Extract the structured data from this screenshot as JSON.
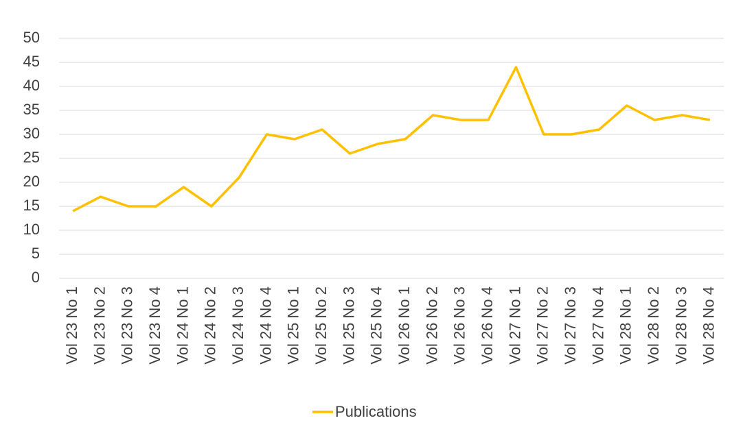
{
  "chart_data": {
    "type": "line",
    "categories": [
      "Vol 23 No 1",
      "Vol 23 No 2",
      "Vol 23 No 3",
      "Vol 23 No 4",
      "Vol 24 No 1",
      "Vol 24 No 2",
      "Vol 24 No 3",
      "Vol 24 No 4",
      "Vol 25 No 1",
      "Vol 25 No 2",
      "Vol 25 No 3",
      "Vol 25 No 4",
      "Vol 26 No 1",
      "Vol 26 No 2",
      "Vol 26 No 3",
      "Vol 26 No 4",
      "Vol 27 No 1",
      "Vol 27 No 2",
      "Vol 27 No 3",
      "Vol 27 No 4",
      "Vol 28 No 1",
      "Vol 28 No 2",
      "Vol 28 No 3",
      "Vol 28 No 4"
    ],
    "series": [
      {
        "name": "Publications",
        "color": "#ffc000",
        "values": [
          14,
          17,
          15,
          15,
          19,
          15,
          21,
          30,
          29,
          31,
          26,
          28,
          29,
          34,
          33,
          33,
          44,
          30,
          30,
          31,
          36,
          33,
          34,
          33
        ]
      }
    ],
    "ylim": [
      0,
      50
    ],
    "yticks": [
      0,
      5,
      10,
      15,
      20,
      25,
      30,
      35,
      40,
      45,
      50
    ],
    "grid": true,
    "legend": "bottom"
  }
}
